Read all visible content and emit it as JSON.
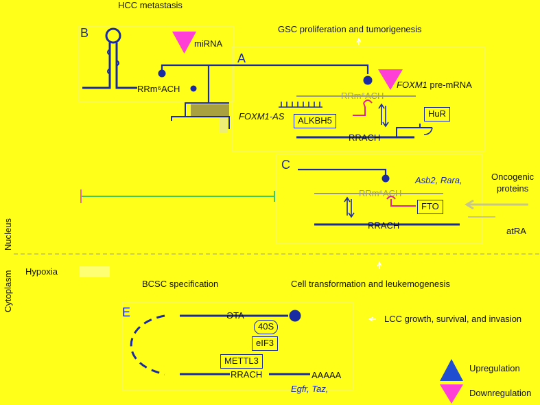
{
  "top": {
    "hcc": "HCC metastasis",
    "gsc": "GSC proliferation and tumorigenesis"
  },
  "panel_b": {
    "letter": "B",
    "mirna": "miRNA",
    "motif": "RRm⁶ACH"
  },
  "panel_a": {
    "letter": "A",
    "pre_mrna_gene": "FOXM1",
    "pre_mrna_rest": " pre-mRNA",
    "motif_top": "RRm⁶ACH",
    "antisense": "FOXM1-AS",
    "alkbh5": "ALKBH5",
    "hur": "HuR",
    "motif_bottom": "RRACH"
  },
  "panel_c": {
    "letter": "C",
    "genes": "Asb2, Rara,",
    "oncogenic": "Oncogenic",
    "proteins": "proteins",
    "motif_top": "RRm⁶ACH",
    "fto": "FTO",
    "motif_bottom": "RRACH",
    "atra": "atRA"
  },
  "sides": {
    "nucleus": "Nucleus",
    "cytoplasm": "Cytoplasm"
  },
  "middle": {
    "hypoxia": "Hypoxia",
    "bcsc": "BCSC specification",
    "leuk": "Cell transformation and leukemogenesis"
  },
  "panel_e": {
    "letter": "E",
    "atg": "ATG",
    "r40s": "40S",
    "eif3": "eIF3",
    "mettl3": "METTL3",
    "motif": "RRACH",
    "polya": "AAAAA",
    "genes": "Egfr, Taz,",
    "lcc": "LCC growth, survival, and invasion"
  },
  "legend": {
    "up": "Upregulation",
    "down": "Downregulation"
  },
  "colors": {
    "background": "#ffff1a",
    "strand": "#1a2aa0",
    "inhibit": "#e0208c",
    "up": "#1f4fd0",
    "down": "#ff3fd6",
    "gray": "#9a9a80"
  }
}
